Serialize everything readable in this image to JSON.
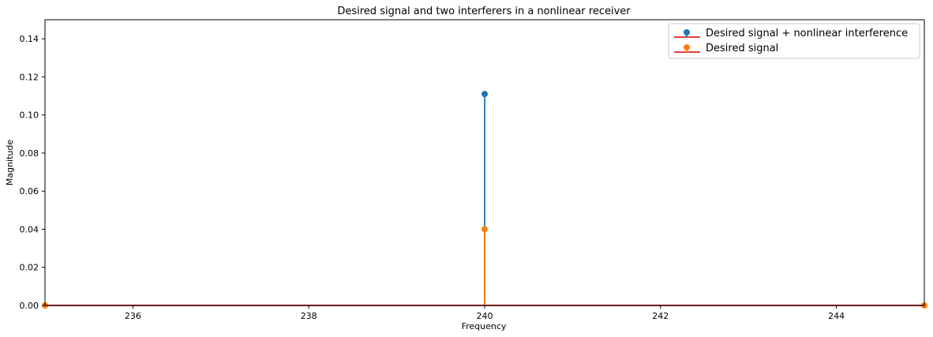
{
  "chart_data": {
    "type": "stem",
    "title": "Desired signal and two interferers in a nonlinear receiver",
    "xlabel": "Frequency",
    "ylabel": "Magnitude",
    "xlim": [
      235,
      245
    ],
    "ylim": [
      0,
      0.15
    ],
    "xticks": [
      236,
      238,
      240,
      242,
      244
    ],
    "yticks": [
      0.0,
      0.02,
      0.04,
      0.06,
      0.08,
      0.1,
      0.12,
      0.14
    ],
    "xtick_labels": [
      "236",
      "238",
      "240",
      "242",
      "244"
    ],
    "ytick_labels": [
      "0.00",
      "0.02",
      "0.04",
      "0.06",
      "0.08",
      "0.10",
      "0.12",
      "0.14"
    ],
    "grid": false,
    "legend_position": "upper right",
    "baseline_color": "#d62728",
    "series": [
      {
        "name": "Desired signal + nonlinear interference",
        "color": "#1f77b4",
        "x": [
          240
        ],
        "y": [
          0.111
        ]
      },
      {
        "name": "Desired signal",
        "color": "#ff7f0e",
        "x": [
          235,
          240,
          245
        ],
        "y": [
          0.0,
          0.04,
          0.0
        ]
      }
    ]
  }
}
